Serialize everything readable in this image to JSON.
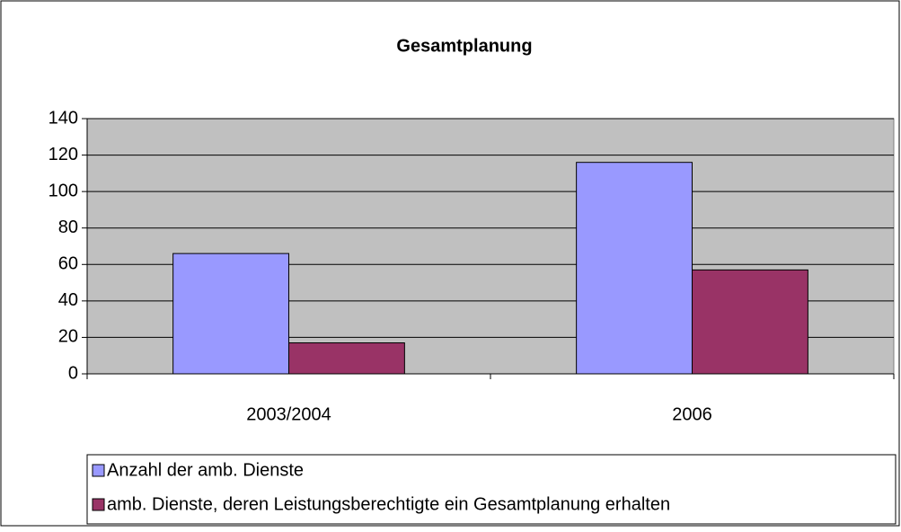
{
  "chart_data": {
    "type": "bar",
    "title": "Gesamtplanung",
    "categories": [
      "2003/2004",
      "2006"
    ],
    "series": [
      {
        "name": "Anzahl der amb. Dienste",
        "color": "#9999ff",
        "values": [
          66,
          116
        ]
      },
      {
        "name": "amb. Dienste, deren Leistungsberechtigte ein Gesamtplanung erhalten",
        "color": "#993366",
        "values": [
          17,
          57
        ]
      }
    ],
    "ylim": [
      0,
      140
    ],
    "yticks": [
      0,
      20,
      40,
      60,
      80,
      100,
      120,
      140
    ],
    "grid": true,
    "legend": "bottom"
  }
}
